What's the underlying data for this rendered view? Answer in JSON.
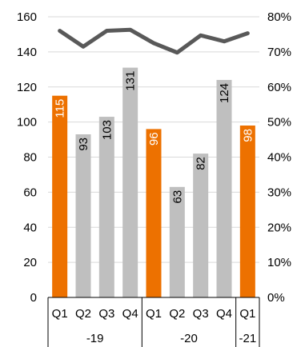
{
  "chart_data": {
    "type": "bar",
    "categories": [
      "Q1",
      "Q2",
      "Q3",
      "Q4",
      "Q1",
      "Q2",
      "Q3",
      "Q4",
      "Q1"
    ],
    "groups": [
      {
        "label": "-19",
        "quarters": 4
      },
      {
        "label": "-20",
        "quarters": 4
      },
      {
        "label": "-21",
        "quarters": 1
      }
    ],
    "series": [
      {
        "type": "bar",
        "values": [
          115,
          93,
          103,
          131,
          96,
          63,
          82,
          124,
          98
        ],
        "highlight": [
          true,
          false,
          false,
          false,
          true,
          false,
          false,
          false,
          true
        ],
        "color": "#ED7100",
        "secondary_color": "#BFBFBF",
        "label_color_highlight": "#ffffff",
        "label_color_normal": "#000000"
      },
      {
        "type": "line",
        "axis": "right",
        "values": [
          76,
          71.5,
          76,
          76.3,
          72.5,
          69.8,
          74.7,
          73,
          75.3
        ],
        "color": "#595959"
      }
    ],
    "y_left": {
      "min": 0,
      "max": 160,
      "ticks": [
        "0",
        "20",
        "40",
        "60",
        "80",
        "100",
        "120",
        "140",
        "160"
      ]
    },
    "y_right": {
      "min": 0,
      "max": 80,
      "ticks": [
        "0%",
        "10%",
        "20%",
        "30%",
        "40%",
        "50%",
        "60%",
        "70%",
        "80%"
      ]
    },
    "grid": true
  }
}
